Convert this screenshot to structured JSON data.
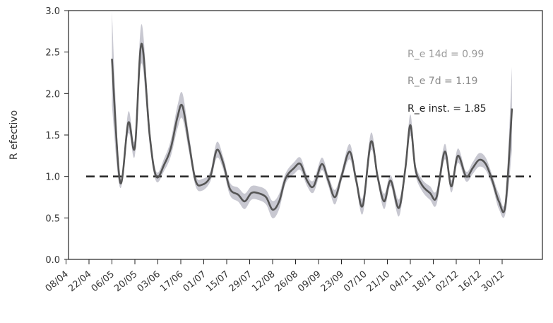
{
  "chart_data": {
    "type": "line",
    "title": "",
    "xlabel": "",
    "ylabel": "R efectivo",
    "ylim": [
      0,
      3
    ],
    "yticks": [
      "0.0",
      "0.5",
      "1.0",
      "1.5",
      "2.0",
      "2.5",
      "3.0"
    ],
    "xticks": [
      "08/04",
      "22/04",
      "06/05",
      "20/05",
      "03/06",
      "17/06",
      "01/07",
      "15/07",
      "29/07",
      "12/08",
      "26/08",
      "09/09",
      "23/09",
      "07/10",
      "21/10",
      "04/11",
      "18/11",
      "02/12",
      "16/12",
      "30/12"
    ],
    "grid": false,
    "reference_line": {
      "y": 1.0,
      "style": "dashed"
    },
    "series": [
      {
        "values": [
          [
            "22/04",
            2.42
          ],
          [
            "27/04",
            0.93
          ],
          [
            "02/05",
            1.65
          ],
          [
            "06/05",
            1.35
          ],
          [
            "10/05",
            2.6
          ],
          [
            "15/05",
            1.5
          ],
          [
            "19/05",
            1.0
          ],
          [
            "24/05",
            1.15
          ],
          [
            "28/05",
            1.35
          ],
          [
            "01/06",
            1.72
          ],
          [
            "04/06",
            1.85
          ],
          [
            "08/06",
            1.4
          ],
          [
            "12/06",
            0.95
          ],
          [
            "16/06",
            0.9
          ],
          [
            "21/06",
            1.0
          ],
          [
            "25/06",
            1.32
          ],
          [
            "29/06",
            1.15
          ],
          [
            "03/07",
            0.85
          ],
          [
            "08/07",
            0.78
          ],
          [
            "12/07",
            0.7
          ],
          [
            "16/07",
            0.8
          ],
          [
            "20/07",
            0.8
          ],
          [
            "25/07",
            0.75
          ],
          [
            "29/07",
            0.6
          ],
          [
            "02/08",
            0.7
          ],
          [
            "06/08",
            0.98
          ],
          [
            "11/08",
            1.1
          ],
          [
            "15/08",
            1.15
          ],
          [
            "19/08",
            0.95
          ],
          [
            "23/08",
            0.88
          ],
          [
            "28/08",
            1.15
          ],
          [
            "01/09",
            0.95
          ],
          [
            "05/09",
            0.75
          ],
          [
            "09/09",
            1.0
          ],
          [
            "14/09",
            1.3
          ],
          [
            "18/09",
            0.95
          ],
          [
            "22/09",
            0.65
          ],
          [
            "27/09",
            1.42
          ],
          [
            "01/10",
            1.0
          ],
          [
            "05/10",
            0.7
          ],
          [
            "09/10",
            0.95
          ],
          [
            "14/10",
            0.62
          ],
          [
            "18/10",
            1.1
          ],
          [
            "21/10",
            1.62
          ],
          [
            "24/10",
            1.1
          ],
          [
            "28/10",
            0.9
          ],
          [
            "02/11",
            0.8
          ],
          [
            "06/11",
            0.75
          ],
          [
            "11/11",
            1.3
          ],
          [
            "15/11",
            0.88
          ],
          [
            "19/11",
            1.25
          ],
          [
            "24/11",
            1.0
          ],
          [
            "28/11",
            1.1
          ],
          [
            "02/12",
            1.2
          ],
          [
            "06/12",
            1.15
          ],
          [
            "10/12",
            0.95
          ],
          [
            "14/12",
            0.7
          ],
          [
            "18/12",
            0.65
          ],
          [
            "22/12",
            1.82
          ]
        ]
      }
    ],
    "annotations": [
      {
        "text": "R_e 14d = 0.99",
        "color": "#9a9a9a"
      },
      {
        "text": "R_e 7d = 1.19",
        "color": "#8a8a8a"
      },
      {
        "text": "R_e inst. = 1.85",
        "color": "#222222"
      }
    ],
    "colors": {
      "line": "#555555",
      "band": "#c2c2cc",
      "reference": "#2a2a2a"
    }
  }
}
